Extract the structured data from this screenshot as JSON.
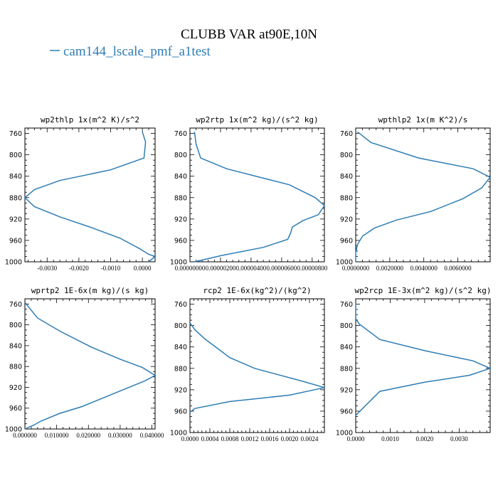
{
  "title": "CLUBB VAR at90E,10N",
  "legend": {
    "label": "cam144_lscale_pmf_a1test",
    "color": "#2e7db5"
  },
  "chart_data": [
    {
      "type": "line",
      "title": "wp2thlp  1x(m^2 K)/s^2",
      "ylim": [
        1000,
        750
      ],
      "yticks": [
        760,
        800,
        840,
        880,
        920,
        960,
        1000
      ],
      "xlim": [
        -0.0037,
        0.0004
      ],
      "xticks": [
        -0.003,
        -0.002,
        -0.001,
        0.0
      ],
      "xtick_labels": [
        "-0.0030",
        "-0.0020",
        "-0.0010",
        "0.0000"
      ],
      "series": [
        {
          "x": [
            0.0,
            0.0001,
            5e-05,
            -0.001,
            -0.0026,
            -0.0034,
            -0.0037,
            -0.0034,
            -0.0026,
            -0.0016,
            -0.0007,
            -0.0001,
            0.0002,
            0.0004,
            0.0002
          ],
          "y": [
            757,
            776,
            806,
            828,
            848,
            865,
            880,
            897,
            916,
            936,
            956,
            975,
            986,
            990,
            1000
          ]
        }
      ]
    },
    {
      "type": "line",
      "title": "wp2rtp  1x(m^2 kg)/(s^2 kg)",
      "ylim": [
        1000,
        750
      ],
      "yticks": [
        760,
        800,
        840,
        880,
        920,
        960,
        1000
      ],
      "xlim": [
        0,
        8.8e-06
      ],
      "xticks": [
        0,
        2e-06,
        4e-06,
        6e-06,
        8e-06
      ],
      "xtick_labels": [
        "0.00000000",
        "0.00000200",
        "0.00000400",
        "0.00000600",
        "0.00000800"
      ],
      "series": [
        {
          "x": [
            3e-07,
            4e-07,
            7e-07,
            2.4e-06,
            6.5e-06,
            8.2e-06,
            8.8e-06,
            8.4e-06,
            7.4e-06,
            6.7e-06,
            6.6e-06,
            6.4e-06,
            4.8e-06,
            2.1e-06,
            3e-07
          ],
          "y": [
            757,
            780,
            806,
            826,
            856,
            880,
            895,
            912,
            923,
            935,
            945,
            958,
            973,
            988,
            1000
          ]
        }
      ]
    },
    {
      "type": "line",
      "title": "wpthlp2  1x(m K^2)/s",
      "ylim": [
        1000,
        750
      ],
      "yticks": [
        760,
        800,
        840,
        880,
        920,
        960,
        1000
      ],
      "xlim": [
        0,
        0.0079
      ],
      "xticks": [
        0,
        0.002,
        0.004,
        0.006
      ],
      "xtick_labels": [
        "0.0000000",
        "0.0020000",
        "0.0040000",
        "0.0060000"
      ],
      "series": [
        {
          "x": [
            0.0001,
            0.0009,
            0.0037,
            0.0069,
            0.0079,
            0.0074,
            0.0063,
            0.0044,
            0.0024,
            0.0011,
            0.0004,
            0.0001,
            0.0,
            0.0
          ],
          "y": [
            757,
            777,
            806,
            826,
            842,
            862,
            882,
            906,
            922,
            937,
            952,
            968,
            984,
            1000
          ]
        }
      ]
    },
    {
      "type": "line",
      "title": "wprtp2  1E-6x(m kg)/(s kg)",
      "ylim": [
        1000,
        750
      ],
      "yticks": [
        760,
        800,
        840,
        880,
        920,
        960,
        1000
      ],
      "xlim": [
        0,
        0.041
      ],
      "xticks": [
        0,
        0.01,
        0.02,
        0.03,
        0.04
      ],
      "xtick_labels": [
        "0.000000",
        "0.010000",
        "0.020000",
        "0.030000",
        "0.040000"
      ],
      "series": [
        {
          "x": [
            0.0,
            0.004,
            0.011,
            0.021,
            0.03,
            0.037,
            0.041,
            0.038,
            0.028,
            0.018,
            0.011,
            0.005,
            0.003,
            0.0
          ],
          "y": [
            757,
            787,
            812,
            843,
            866,
            882,
            897,
            907,
            932,
            957,
            970,
            985,
            992,
            1000
          ]
        }
      ]
    },
    {
      "type": "line",
      "title": "rcp2  1E-6x(kg^2)/(kg^2)",
      "ylim": [
        1000,
        750
      ],
      "yticks": [
        760,
        800,
        840,
        880,
        920,
        960,
        1000
      ],
      "xlim": [
        0,
        0.0027
      ],
      "xticks": [
        0,
        0.0004,
        0.0008,
        0.0012,
        0.0016,
        0.002,
        0.0024
      ],
      "xtick_labels": [
        "0.0000",
        "0.0004",
        "0.0008",
        "0.0012",
        "0.0016",
        "0.0020",
        "0.0024"
      ],
      "series": [
        {
          "x": [
            0.0,
            0.0001,
            0.0003,
            0.0008,
            0.0013,
            0.0023,
            0.0027,
            0.002,
            0.0008,
            0.0001,
            0.0
          ],
          "y": [
            795,
            808,
            825,
            860,
            880,
            905,
            916,
            930,
            942,
            955,
            962
          ]
        }
      ]
    },
    {
      "type": "line",
      "title": "wp2rcp  1E-3x(m^2 kg)/(s^2 kg)",
      "ylim": [
        1000,
        750
      ],
      "yticks": [
        760,
        800,
        840,
        880,
        920,
        960,
        1000
      ],
      "xlim": [
        0,
        0.0039
      ],
      "xticks": [
        0,
        0.001,
        0.002,
        0.003
      ],
      "xtick_labels": [
        "0.0000",
        "0.0010",
        "0.0020",
        "0.0030"
      ],
      "series": [
        {
          "x": [
            0.0,
            0.0,
            0.0001,
            0.0007,
            0.002,
            0.0034,
            0.0039,
            0.0033,
            0.002,
            0.0007,
            0.0002,
            0.0
          ],
          "y": [
            757,
            787,
            797,
            826,
            847,
            866,
            880,
            893,
            906,
            923,
            955,
            968
          ]
        }
      ]
    }
  ]
}
